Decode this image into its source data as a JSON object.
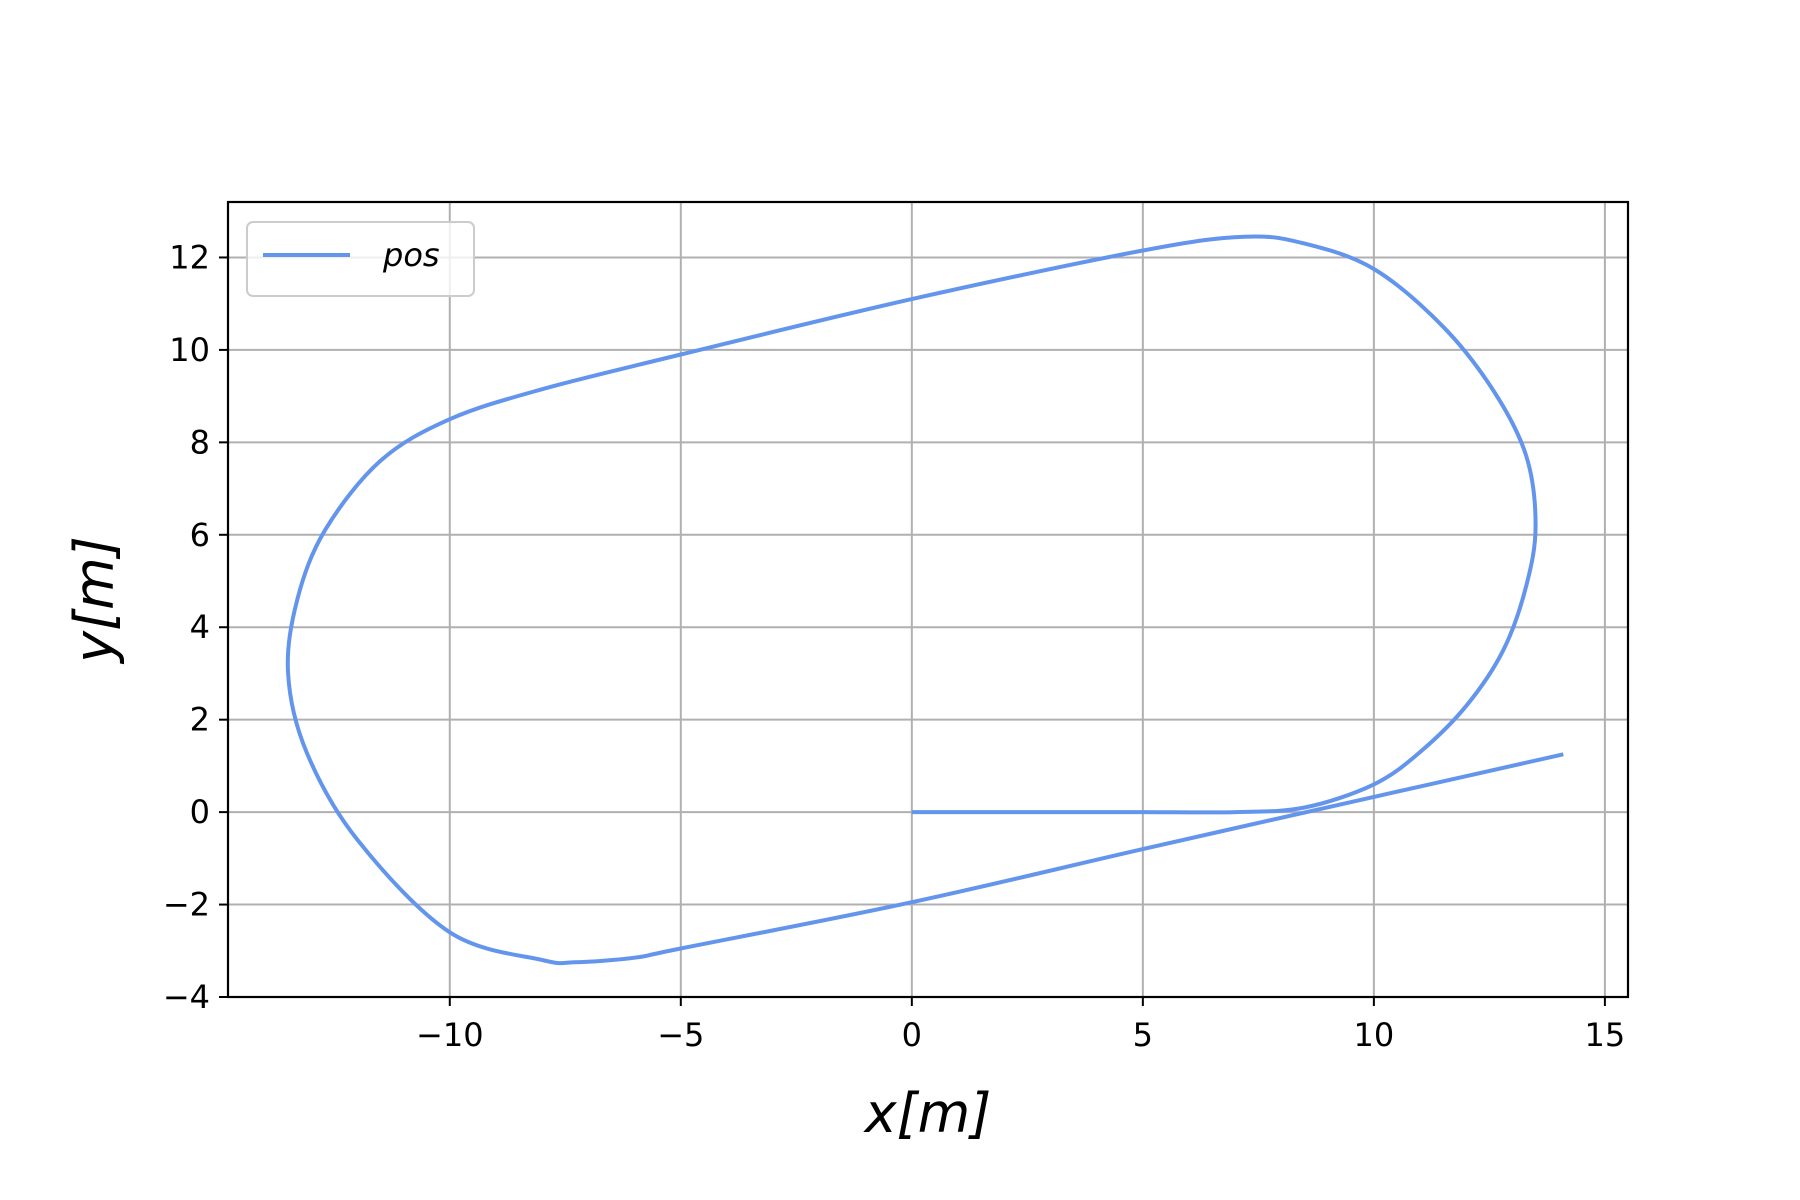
{
  "chart_data": {
    "type": "line",
    "title": "",
    "xlabel": "x[m]",
    "ylabel": "y[m]",
    "xlim": [
      -14.8,
      15.5
    ],
    "ylim": [
      -4.0,
      13.2
    ],
    "grid": true,
    "legend": {
      "position": "top-left",
      "entries": [
        "pos"
      ]
    },
    "xticks": [
      -10,
      -5,
      0,
      5,
      10,
      15
    ],
    "xtick_labels": [
      "−10",
      "−5",
      "0",
      "5",
      "10",
      "15"
    ],
    "yticks": [
      -4,
      -2,
      0,
      2,
      4,
      6,
      8,
      10,
      12
    ],
    "ytick_labels": [
      "−4",
      "−2",
      "0",
      "2",
      "4",
      "6",
      "8",
      "10",
      "12"
    ],
    "series": [
      {
        "name": "pos",
        "color": "#6495ED",
        "x": [
          0,
          3,
          5,
          7,
          8.5,
          10,
          11,
          12,
          12.8,
          13.3,
          13.5,
          13.3,
          12.6,
          11.5,
          10,
          8.5,
          7.2,
          5,
          0,
          -5,
          -8,
          -10,
          -11.5,
          -12.7,
          -13.3,
          -13.5,
          -13.1,
          -12,
          -10,
          -8,
          -7.3,
          -6,
          -5,
          0,
          5,
          10,
          14.1
        ],
        "y": [
          0,
          0,
          0,
          0,
          0.1,
          0.6,
          1.3,
          2.3,
          3.5,
          4.9,
          6.2,
          7.7,
          9.1,
          10.5,
          11.75,
          12.3,
          12.45,
          12.15,
          11.1,
          9.9,
          9.15,
          8.5,
          7.6,
          6.1,
          4.6,
          3.0,
          1.3,
          -0.6,
          -2.6,
          -3.2,
          -3.25,
          -3.15,
          -2.95,
          -1.95,
          -0.8,
          0.33,
          1.25
        ]
      }
    ]
  }
}
